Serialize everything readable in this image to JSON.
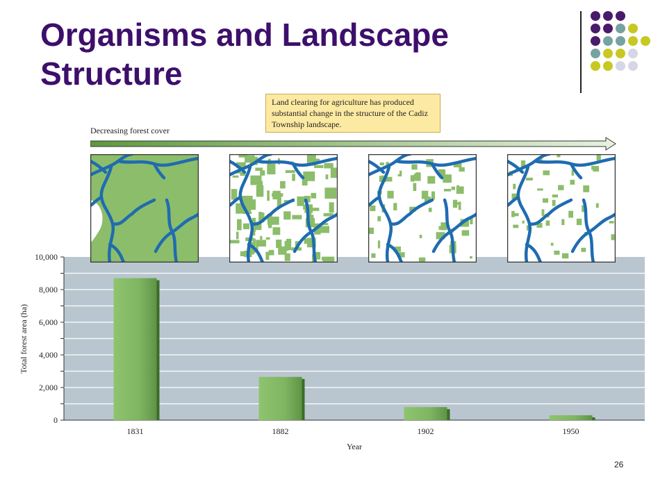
{
  "slide": {
    "title": "Organisms and Landscape Structure",
    "page_number": "26"
  },
  "figure": {
    "callout_text": "Land clearing for agriculture has produced substantial change in the structure of the Cadiz Township landscape.",
    "arrow_label": "Decreasing forest cover"
  },
  "colors": {
    "title": "#3d0f6b",
    "bar": "#7fb561",
    "plot_background": "#b9c6cf",
    "river": "#1f6cb0",
    "forest": "#8cbd6a",
    "callout": "#fdeaa2",
    "accent_purple": "#4a1a6b",
    "accent_teal": "#77a2a2",
    "accent_yellow": "#c8c822",
    "accent_lavender": "#d6d6e6"
  },
  "chart_data": {
    "type": "bar",
    "categories": [
      "1831",
      "1882",
      "1902",
      "1950"
    ],
    "values": [
      8700,
      2650,
      800,
      300
    ],
    "title": "",
    "xlabel": "Year",
    "ylabel": "Total forest area (ha)",
    "ylim": [
      0,
      10000
    ],
    "yticks": [
      0,
      2000,
      4000,
      6000,
      8000,
      10000
    ],
    "ytick_labels": [
      "0",
      "2,000",
      "4,000",
      "6,000",
      "8,000",
      "10,000"
    ],
    "grid": true,
    "legend": "none"
  }
}
